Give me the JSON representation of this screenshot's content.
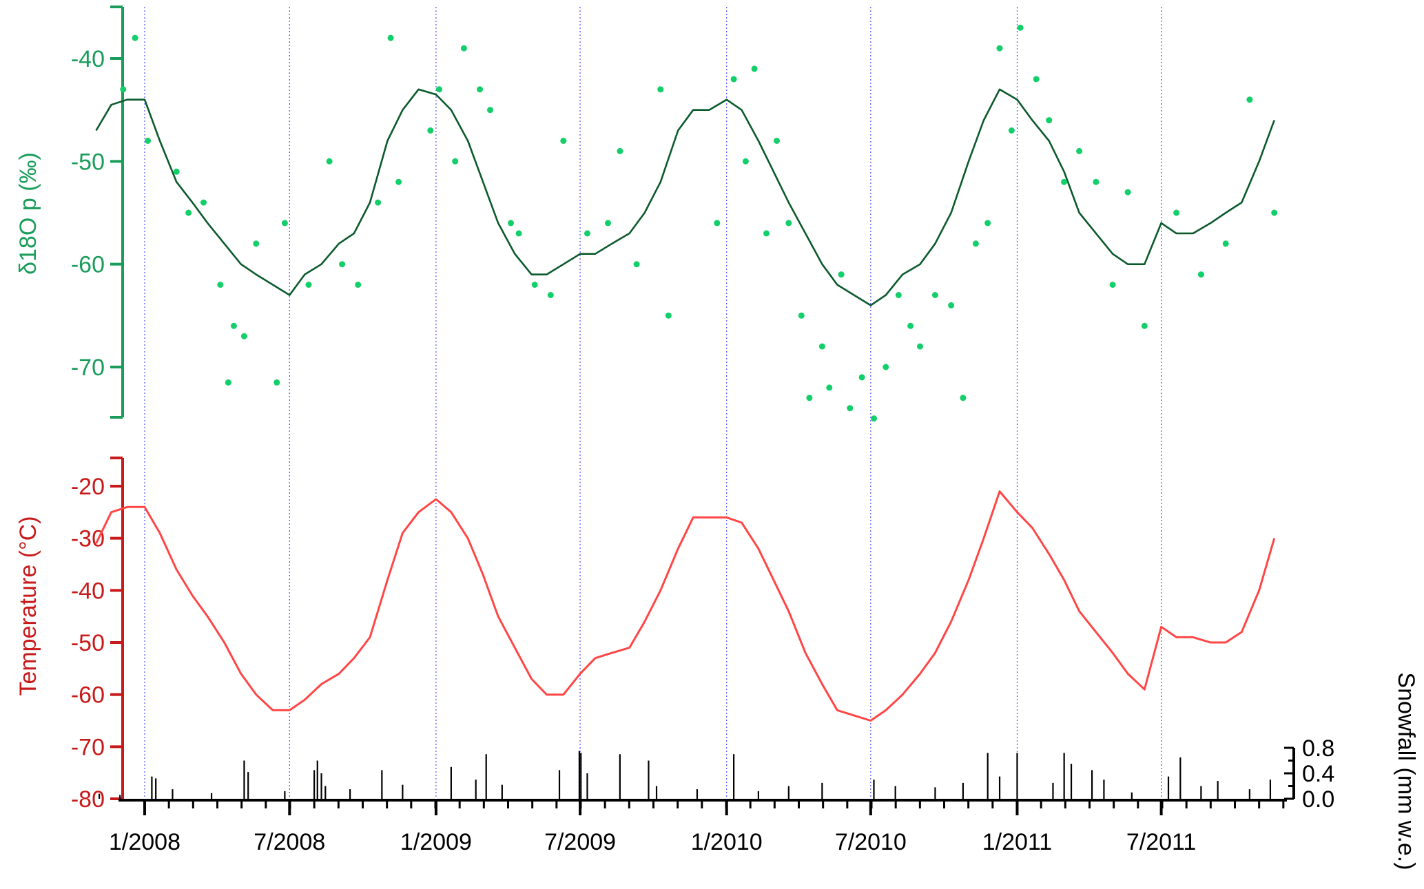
{
  "colors": {
    "iso_axis": "#1a9c5a",
    "iso_line": "#0b5a2c",
    "iso_points": "#13cf6a",
    "temp_axis": "#c81a1a",
    "temp_line": "#ff4646",
    "snow": "#000000",
    "grid": "#5050ff"
  },
  "chart_data": [
    {
      "type": "scatter",
      "ylabel": "δ18O p (‰)",
      "ylim": [
        -76,
        -35
      ],
      "yticks": [
        -40,
        -50,
        -60,
        -70
      ],
      "grid": "vertical dotted lines at each half-year",
      "series": [
        {
          "name": "",
          "kind": "line",
          "x": [
            "2007-11-01",
            "2007-11-20",
            "2007-12-10",
            "2008-01-01",
            "2008-01-20",
            "2008-02-10",
            "2008-03-01",
            "2008-03-20",
            "2008-04-10",
            "2008-05-01",
            "2008-05-20",
            "2008-06-10",
            "2008-07-01",
            "2008-07-20",
            "2008-08-10",
            "2008-09-01",
            "2008-09-20",
            "2008-10-10",
            "2008-11-01",
            "2008-11-20",
            "2008-12-10",
            "2009-01-01",
            "2009-01-20",
            "2009-02-10",
            "2009-03-01",
            "2009-03-20",
            "2009-04-10",
            "2009-05-01",
            "2009-05-20",
            "2009-06-10",
            "2009-07-01",
            "2009-07-20",
            "2009-08-10",
            "2009-09-01",
            "2009-09-20",
            "2009-10-10",
            "2009-11-01",
            "2009-11-20",
            "2009-12-10",
            "2010-01-01",
            "2010-01-20",
            "2010-02-10",
            "2010-03-01",
            "2010-03-20",
            "2010-04-10",
            "2010-05-01",
            "2010-05-20",
            "2010-06-10",
            "2010-07-01",
            "2010-07-20",
            "2010-08-10",
            "2010-09-01",
            "2010-09-20",
            "2010-10-10",
            "2010-11-01",
            "2010-11-20",
            "2010-12-10",
            "2011-01-01",
            "2011-01-20",
            "2011-02-10",
            "2011-03-01",
            "2011-03-20",
            "2011-04-10",
            "2011-05-01",
            "2011-05-20",
            "2011-06-10",
            "2011-07-01",
            "2011-07-20",
            "2011-08-10",
            "2011-09-01",
            "2011-09-20",
            "2011-10-10",
            "2011-11-01",
            "2011-11-20"
          ],
          "y": [
            -47,
            -44.5,
            -44,
            -44,
            -48,
            -52,
            -54,
            -56,
            -58,
            -60,
            -61,
            -62,
            -63,
            -61,
            -60,
            -58,
            -57,
            -54,
            -48,
            -45,
            -43,
            -43.5,
            -45,
            -48,
            -52,
            -56,
            -59,
            -61,
            -61,
            -60,
            -59,
            -59,
            -58,
            -57,
            -55,
            -52,
            -47,
            -45,
            -45,
            -44,
            -45,
            -48,
            -51,
            -54,
            -57,
            -60,
            -62,
            -63,
            -64,
            -63,
            -61,
            -60,
            -58,
            -55,
            -50,
            -46,
            -43,
            -44,
            -46,
            -48,
            -51,
            -55,
            -57,
            -59,
            -60,
            -60,
            -56,
            -57,
            -57,
            -56,
            -55,
            -54,
            -50,
            -46
          ]
        },
        {
          "name": "",
          "kind": "points",
          "x": [
            "2007-12-05",
            "2007-12-20",
            "2008-01-05",
            "2008-02-10",
            "2008-02-25",
            "2008-03-15",
            "2008-04-05",
            "2008-04-15",
            "2008-04-22",
            "2008-05-05",
            "2008-05-20",
            "2008-06-15",
            "2008-06-25",
            "2008-07-25",
            "2008-08-20",
            "2008-09-05",
            "2008-09-25",
            "2008-10-20",
            "2008-11-05",
            "2008-11-15",
            "2008-12-25",
            "2009-01-05",
            "2009-01-25",
            "2009-02-05",
            "2009-02-25",
            "2009-03-10",
            "2009-04-05",
            "2009-04-15",
            "2009-05-05",
            "2009-05-25",
            "2009-06-10",
            "2009-07-10",
            "2009-08-05",
            "2009-08-20",
            "2009-09-10",
            "2009-10-10",
            "2009-10-20",
            "2009-12-20",
            "2010-01-10",
            "2010-01-25",
            "2010-02-05",
            "2010-02-20",
            "2010-03-05",
            "2010-03-20",
            "2010-04-05",
            "2010-04-15",
            "2010-05-01",
            "2010-05-10",
            "2010-05-25",
            "2010-06-05",
            "2010-06-20",
            "2010-07-05",
            "2010-07-20",
            "2010-08-05",
            "2010-08-20",
            "2010-09-01",
            "2010-09-20",
            "2010-10-10",
            "2010-10-25",
            "2010-11-10",
            "2010-11-25",
            "2010-12-10",
            "2010-12-25",
            "2011-01-05",
            "2011-01-25",
            "2011-02-10",
            "2011-03-01",
            "2011-03-20",
            "2011-04-10",
            "2011-05-01",
            "2011-05-20",
            "2011-06-10",
            "2011-07-20",
            "2011-08-20",
            "2011-09-20",
            "2011-10-20",
            "2011-11-20"
          ],
          "y": [
            -43,
            -38,
            -48,
            -51,
            -55,
            -54,
            -62,
            -71.5,
            -66,
            -67,
            -58,
            -71.5,
            -56,
            -62,
            -50,
            -60,
            -62,
            -54,
            -38,
            -52,
            -47,
            -43,
            -50,
            -39,
            -43,
            -45,
            -56,
            -57,
            -62,
            -63,
            -48,
            -57,
            -56,
            -49,
            -60,
            -43,
            -65,
            -56,
            -42,
            -50,
            -41,
            -57,
            -48,
            -56,
            -65,
            -73,
            -68,
            -72,
            -61,
            -74,
            -71,
            -75,
            -70,
            -63,
            -66,
            -68,
            -63,
            -64,
            -73,
            -58,
            -56,
            -39,
            -47,
            -37,
            -42,
            -46,
            -52,
            -49,
            -52,
            -62,
            -53,
            -66,
            -55,
            -61,
            -58,
            -44,
            -55
          ]
        }
      ]
    },
    {
      "type": "line",
      "ylabel": "Temperature (°C)",
      "ylim": [
        -80,
        -15
      ],
      "yticks": [
        -20,
        -30,
        -40,
        -50,
        -60,
        -70,
        -80
      ],
      "series": [
        {
          "name": "",
          "x": [
            "2007-11-01",
            "2007-11-20",
            "2007-12-10",
            "2008-01-01",
            "2008-01-20",
            "2008-02-10",
            "2008-03-01",
            "2008-03-20",
            "2008-04-10",
            "2008-05-01",
            "2008-05-20",
            "2008-06-10",
            "2008-07-01",
            "2008-07-20",
            "2008-08-10",
            "2008-09-01",
            "2008-09-20",
            "2008-10-10",
            "2008-11-01",
            "2008-11-20",
            "2008-12-10",
            "2009-01-01",
            "2009-01-20",
            "2009-02-10",
            "2009-03-01",
            "2009-03-20",
            "2009-04-10",
            "2009-05-01",
            "2009-05-20",
            "2009-06-10",
            "2009-07-01",
            "2009-07-20",
            "2009-08-10",
            "2009-09-01",
            "2009-09-20",
            "2009-10-10",
            "2009-11-01",
            "2009-11-20",
            "2009-12-10",
            "2010-01-01",
            "2010-01-20",
            "2010-02-10",
            "2010-03-01",
            "2010-03-20",
            "2010-04-10",
            "2010-05-01",
            "2010-05-20",
            "2010-06-10",
            "2010-07-01",
            "2010-07-20",
            "2010-08-10",
            "2010-09-01",
            "2010-09-20",
            "2010-10-10",
            "2010-11-01",
            "2010-11-20",
            "2010-12-10",
            "2011-01-01",
            "2011-01-20",
            "2011-02-10",
            "2011-03-01",
            "2011-03-20",
            "2011-04-10",
            "2011-05-01",
            "2011-05-20",
            "2011-06-10",
            "2011-07-01",
            "2011-07-20",
            "2011-08-10",
            "2011-09-01",
            "2011-09-20",
            "2011-10-10",
            "2011-11-01",
            "2011-11-20"
          ],
          "y": [
            -31,
            -25,
            -24,
            -24,
            -29,
            -36,
            -41,
            -45,
            -50,
            -56,
            -60,
            -63,
            -63,
            -61,
            -58,
            -56,
            -53,
            -49,
            -38,
            -29,
            -25,
            -22.5,
            -25,
            -30,
            -37,
            -45,
            -51,
            -57,
            -60,
            -60,
            -56,
            -53,
            -52,
            -51,
            -46,
            -40,
            -32,
            -26,
            -26,
            -26,
            -27,
            -32,
            -38,
            -44,
            -52,
            -58,
            -63,
            -64,
            -65,
            -63,
            -60,
            -56,
            -52,
            -46,
            -38,
            -30,
            -21,
            -25,
            -28,
            -33,
            -38,
            -44,
            -48,
            -52,
            -56,
            -59,
            -47,
            -49,
            -49,
            -50,
            -50,
            -48,
            -40,
            -30
          ]
        }
      ]
    },
    {
      "type": "bar",
      "ylabel": "Snowfall (mm w.e.)",
      "ylim": [
        0.0,
        0.8
      ],
      "yticks": [
        "0.0",
        "0.4",
        "0.8"
      ],
      "xticks": [
        "1/2008",
        "7/2008",
        "1/2009",
        "7/2009",
        "1/2010",
        "7/2010",
        "1/2011",
        "7/2011"
      ],
      "series": [
        {
          "name": "",
          "x": [
            "2007-11-05",
            "2007-12-01",
            "2008-01-10",
            "2008-01-15",
            "2008-02-05",
            "2008-03-25",
            "2008-05-05",
            "2008-05-10",
            "2008-06-25",
            "2008-08-01",
            "2008-08-05",
            "2008-08-10",
            "2008-08-15",
            "2008-09-15",
            "2008-10-25",
            "2008-11-20",
            "2009-01-20",
            "2009-02-20",
            "2009-03-05",
            "2009-03-25",
            "2009-06-05",
            "2009-06-30",
            "2009-07-02",
            "2009-07-10",
            "2009-08-20",
            "2009-09-25",
            "2009-10-05",
            "2009-11-25",
            "2010-01-10",
            "2010-02-10",
            "2010-03-20",
            "2010-05-01",
            "2010-07-05",
            "2010-08-01",
            "2010-09-20",
            "2010-10-25",
            "2010-11-25",
            "2010-12-10",
            "2011-01-01",
            "2011-02-15",
            "2011-03-01",
            "2011-03-10",
            "2011-04-05",
            "2011-04-20",
            "2011-05-25",
            "2011-07-10",
            "2011-07-25",
            "2011-08-20",
            "2011-09-10",
            "2011-10-20",
            "2011-11-15"
          ],
          "values": [
            0.08,
            0.06,
            0.35,
            0.32,
            0.15,
            0.09,
            0.6,
            0.42,
            0.12,
            0.45,
            0.6,
            0.4,
            0.2,
            0.15,
            0.45,
            0.22,
            0.5,
            0.3,
            0.7,
            0.22,
            0.45,
            0.75,
            0.72,
            0.4,
            0.7,
            0.6,
            0.2,
            0.15,
            0.7,
            0.12,
            0.2,
            0.25,
            0.3,
            0.2,
            0.18,
            0.25,
            0.72,
            0.35,
            0.72,
            0.25,
            0.72,
            0.55,
            0.45,
            0.3,
            0.1,
            0.35,
            0.65,
            0.2,
            0.28,
            0.15,
            0.3
          ]
        }
      ]
    }
  ]
}
